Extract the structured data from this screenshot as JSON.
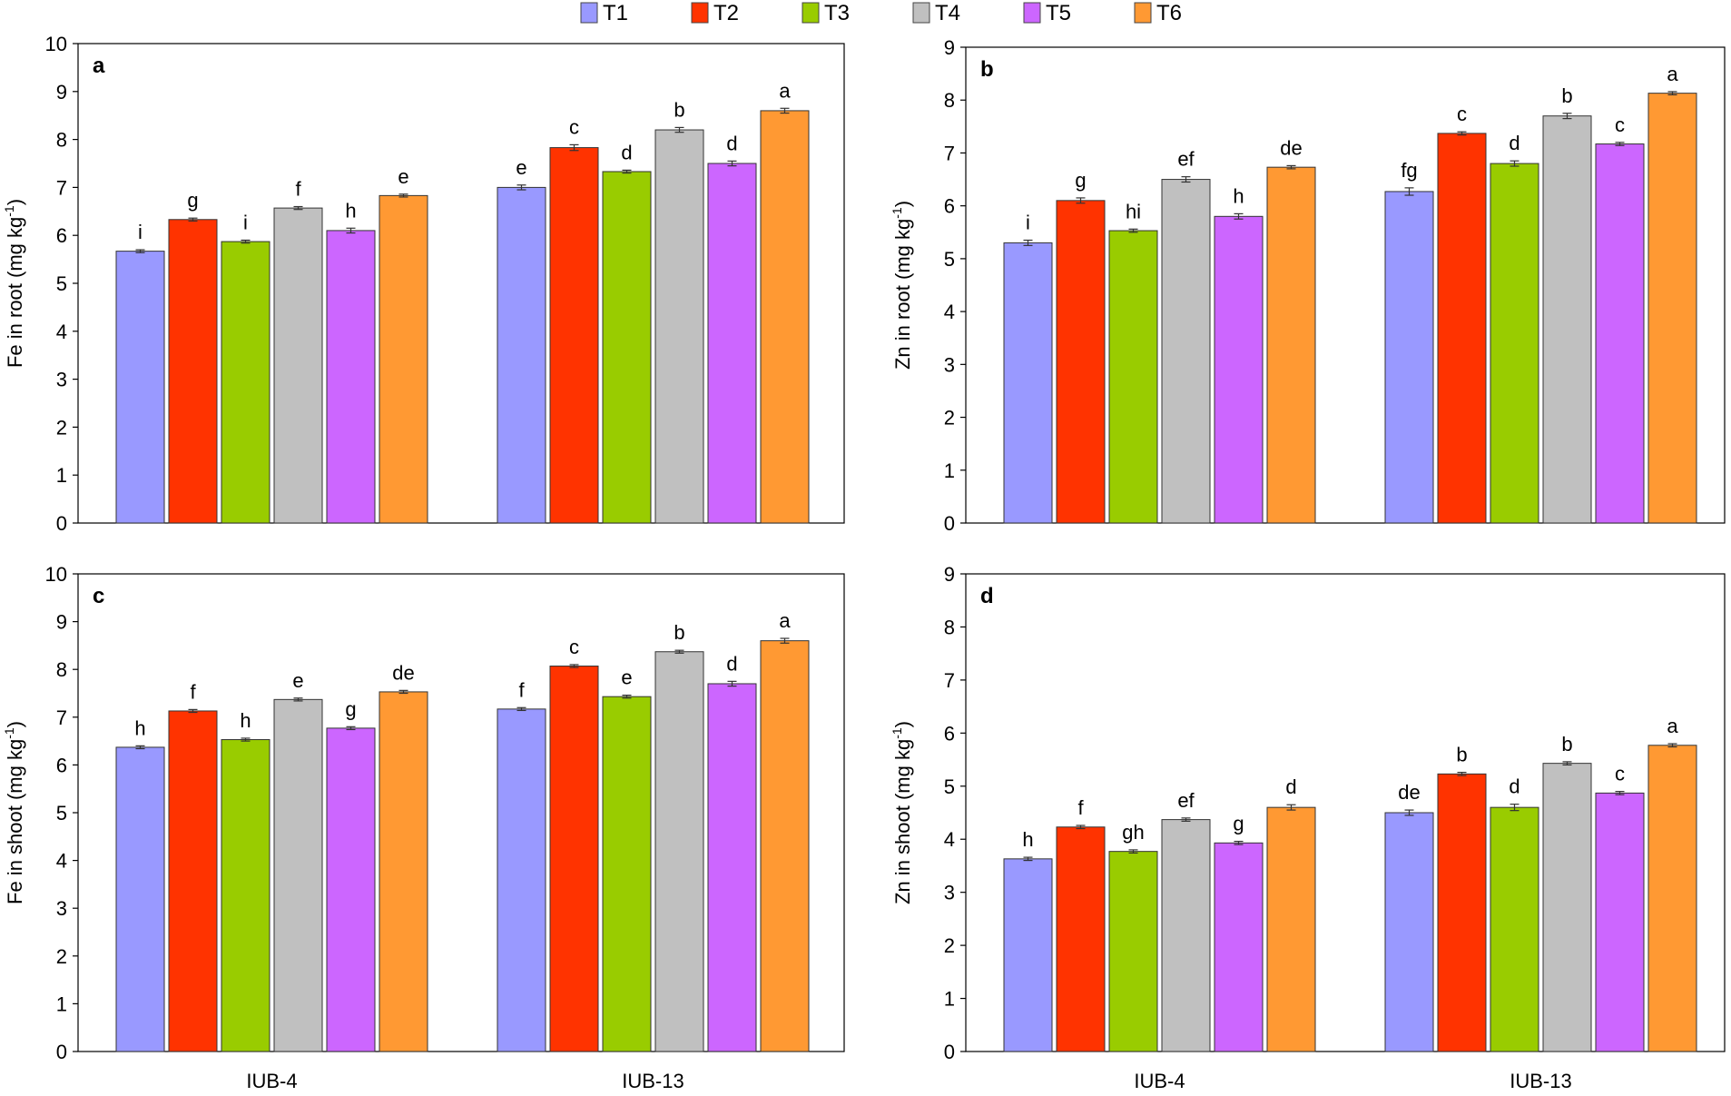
{
  "legend": [
    {
      "name": "T1",
      "color": "#9999ff"
    },
    {
      "name": "T2",
      "color": "#ff3300"
    },
    {
      "name": "T3",
      "color": "#99cc00"
    },
    {
      "name": "T4",
      "color": "#c0c0c0"
    },
    {
      "name": "T5",
      "color": "#cc66ff"
    },
    {
      "name": "T6",
      "color": "#ff9933"
    }
  ],
  "chart_data": [
    {
      "type": "bar",
      "panel": "a",
      "ylabel": "Fe in root (mg kg",
      "ylabel_sup": "-1",
      "ylabel_end": ")",
      "categories": [
        "IUB-4",
        "IUB-13"
      ],
      "show_category_labels": false,
      "ylim": [
        0,
        10
      ],
      "yticks": [
        0,
        1,
        2,
        3,
        4,
        5,
        6,
        7,
        8,
        9,
        10
      ],
      "series": [
        {
          "name": "T1",
          "values": [
            5.67,
            7.0
          ],
          "errors": [
            0.03,
            0.05
          ],
          "letters": [
            "i",
            "e"
          ]
        },
        {
          "name": "T2",
          "values": [
            6.33,
            7.83
          ],
          "errors": [
            0.03,
            0.06
          ],
          "letters": [
            "g",
            "c"
          ]
        },
        {
          "name": "T3",
          "values": [
            5.87,
            7.33
          ],
          "errors": [
            0.03,
            0.03
          ],
          "letters": [
            "i",
            "d"
          ]
        },
        {
          "name": "T4",
          "values": [
            6.57,
            8.2
          ],
          "errors": [
            0.03,
            0.05
          ],
          "letters": [
            "f",
            "b"
          ]
        },
        {
          "name": "T5",
          "values": [
            6.1,
            7.5
          ],
          "errors": [
            0.05,
            0.05
          ],
          "letters": [
            "h",
            "d"
          ]
        },
        {
          "name": "T6",
          "values": [
            6.83,
            8.6
          ],
          "errors": [
            0.03,
            0.05
          ],
          "letters": [
            "e",
            "a"
          ]
        }
      ]
    },
    {
      "type": "bar",
      "panel": "b",
      "ylabel": "Zn in root (mg kg",
      "ylabel_sup": "-1",
      "ylabel_end": ")",
      "categories": [
        "IUB-4",
        "IUB-13"
      ],
      "show_category_labels": false,
      "ylim": [
        0,
        9
      ],
      "yticks": [
        0,
        1,
        2,
        3,
        4,
        5,
        6,
        7,
        8,
        9
      ],
      "series": [
        {
          "name": "T1",
          "values": [
            5.3,
            6.27
          ],
          "errors": [
            0.05,
            0.07
          ],
          "letters": [
            "i",
            "fg"
          ]
        },
        {
          "name": "T2",
          "values": [
            6.1,
            7.37
          ],
          "errors": [
            0.05,
            0.03
          ],
          "letters": [
            "g",
            "c"
          ]
        },
        {
          "name": "T3",
          "values": [
            5.53,
            6.8
          ],
          "errors": [
            0.03,
            0.05
          ],
          "letters": [
            "hi",
            "d"
          ]
        },
        {
          "name": "T4",
          "values": [
            6.5,
            7.7
          ],
          "errors": [
            0.05,
            0.05
          ],
          "letters": [
            "ef",
            "b"
          ]
        },
        {
          "name": "T5",
          "values": [
            5.8,
            7.17
          ],
          "errors": [
            0.05,
            0.03
          ],
          "letters": [
            "h",
            "c"
          ]
        },
        {
          "name": "T6",
          "values": [
            6.73,
            8.13
          ],
          "errors": [
            0.03,
            0.03
          ],
          "letters": [
            "de",
            "a"
          ]
        }
      ]
    },
    {
      "type": "bar",
      "panel": "c",
      "ylabel": "Fe in shoot (mg kg",
      "ylabel_sup": "-1",
      "ylabel_end": ")",
      "categories": [
        "IUB-4",
        "IUB-13"
      ],
      "show_category_labels": true,
      "ylim": [
        0,
        10
      ],
      "yticks": [
        0,
        1,
        2,
        3,
        4,
        5,
        6,
        7,
        8,
        9,
        10
      ],
      "series": [
        {
          "name": "T1",
          "values": [
            6.37,
            7.17
          ],
          "errors": [
            0.03,
            0.03
          ],
          "letters": [
            "h",
            "f"
          ]
        },
        {
          "name": "T2",
          "values": [
            7.13,
            8.07
          ],
          "errors": [
            0.03,
            0.03
          ],
          "letters": [
            "f",
            "c"
          ]
        },
        {
          "name": "T3",
          "values": [
            6.53,
            7.43
          ],
          "errors": [
            0.03,
            0.03
          ],
          "letters": [
            "h",
            "e"
          ]
        },
        {
          "name": "T4",
          "values": [
            7.37,
            8.37
          ],
          "errors": [
            0.03,
            0.03
          ],
          "letters": [
            "e",
            "b"
          ]
        },
        {
          "name": "T5",
          "values": [
            6.77,
            7.7
          ],
          "errors": [
            0.03,
            0.05
          ],
          "letters": [
            "g",
            "d"
          ]
        },
        {
          "name": "T6",
          "values": [
            7.53,
            8.6
          ],
          "errors": [
            0.03,
            0.05
          ],
          "letters": [
            "de",
            "a"
          ]
        }
      ]
    },
    {
      "type": "bar",
      "panel": "d",
      "ylabel": "Zn in shoot (mg kg",
      "ylabel_sup": "-1",
      "ylabel_end": ")",
      "categories": [
        "IUB-4",
        "IUB-13"
      ],
      "show_category_labels": true,
      "ylim": [
        0,
        9
      ],
      "yticks": [
        0,
        1,
        2,
        3,
        4,
        5,
        6,
        7,
        8,
        9
      ],
      "series": [
        {
          "name": "T1",
          "values": [
            3.63,
            4.5
          ],
          "errors": [
            0.03,
            0.05
          ],
          "letters": [
            "h",
            "de"
          ]
        },
        {
          "name": "T2",
          "values": [
            4.23,
            5.23
          ],
          "errors": [
            0.03,
            0.03
          ],
          "letters": [
            "f",
            "b"
          ]
        },
        {
          "name": "T3",
          "values": [
            3.77,
            4.6
          ],
          "errors": [
            0.03,
            0.06
          ],
          "letters": [
            "gh",
            "d"
          ]
        },
        {
          "name": "T4",
          "values": [
            4.37,
            5.43
          ],
          "errors": [
            0.03,
            0.03
          ],
          "letters": [
            "ef",
            "b"
          ]
        },
        {
          "name": "T5",
          "values": [
            3.93,
            4.87
          ],
          "errors": [
            0.03,
            0.03
          ],
          "letters": [
            "g",
            "c"
          ]
        },
        {
          "name": "T6",
          "values": [
            4.6,
            5.77
          ],
          "errors": [
            0.05,
            0.03
          ],
          "letters": [
            "d",
            "a"
          ]
        }
      ]
    }
  ]
}
